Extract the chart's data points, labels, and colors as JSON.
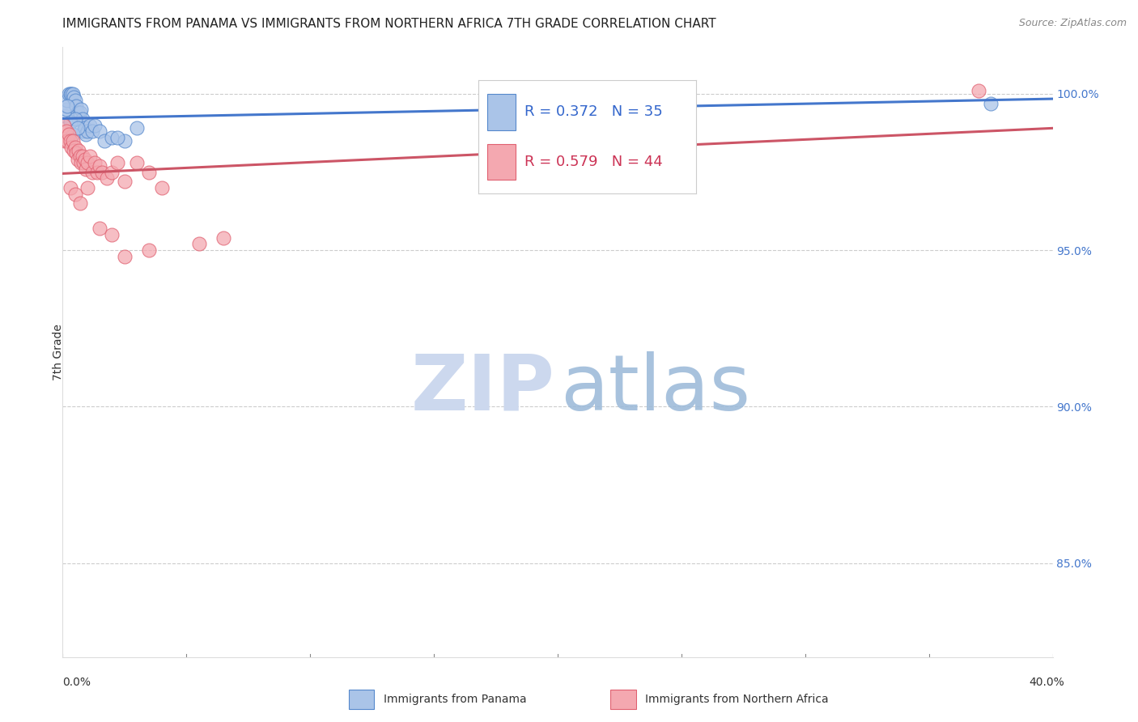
{
  "title": "IMMIGRANTS FROM PANAMA VS IMMIGRANTS FROM NORTHERN AFRICA 7TH GRADE CORRELATION CHART",
  "source": "Source: ZipAtlas.com",
  "ylabel": "7th Grade",
  "right_yticks": [
    85.0,
    90.0,
    95.0,
    100.0
  ],
  "right_ytick_labels": [
    "85.0%",
    "90.0%",
    "95.0%",
    "100.0%"
  ],
  "blue_color": "#aac4e8",
  "pink_color": "#f4a8b0",
  "blue_edge_color": "#5588cc",
  "pink_edge_color": "#e06070",
  "blue_line_color": "#4477cc",
  "pink_line_color": "#cc5566",
  "legend_r_blue": "R = 0.372",
  "legend_n_blue": "N = 35",
  "legend_r_pink": "R = 0.579",
  "legend_n_pink": "N = 44",
  "x_min": 0.0,
  "x_max": 40.0,
  "y_min": 82.0,
  "y_max": 101.5,
  "blue_scatter_x": [
    0.1,
    0.15,
    0.2,
    0.25,
    0.3,
    0.35,
    0.4,
    0.45,
    0.5,
    0.55,
    0.6,
    0.65,
    0.7,
    0.75,
    0.8,
    0.85,
    0.9,
    0.95,
    1.0,
    1.1,
    1.2,
    1.3,
    1.5,
    1.7,
    2.0,
    2.5,
    3.0,
    0.2,
    0.3,
    0.4,
    0.5,
    0.6,
    2.2,
    22.5,
    37.5
  ],
  "blue_scatter_y": [
    99.3,
    99.5,
    99.8,
    100.0,
    100.0,
    100.0,
    100.0,
    99.9,
    99.8,
    99.6,
    99.4,
    99.2,
    99.4,
    99.5,
    99.2,
    98.8,
    98.9,
    98.7,
    98.8,
    99.0,
    98.8,
    99.0,
    98.8,
    98.5,
    98.6,
    98.5,
    98.9,
    99.6,
    99.1,
    98.7,
    99.2,
    98.9,
    98.6,
    100.1,
    99.7
  ],
  "pink_scatter_x": [
    0.05,
    0.1,
    0.15,
    0.2,
    0.25,
    0.3,
    0.35,
    0.4,
    0.45,
    0.5,
    0.55,
    0.6,
    0.65,
    0.7,
    0.75,
    0.8,
    0.85,
    0.9,
    0.95,
    1.0,
    1.1,
    1.2,
    1.3,
    1.4,
    1.5,
    1.6,
    1.8,
    2.0,
    2.2,
    2.5,
    3.0,
    3.5,
    0.3,
    0.5,
    0.7,
    1.0,
    1.5,
    2.0,
    2.5,
    3.5,
    5.5,
    37.0,
    6.5,
    4.0
  ],
  "pink_scatter_y": [
    99.0,
    98.5,
    98.8,
    98.5,
    98.7,
    98.5,
    98.3,
    98.5,
    98.2,
    98.3,
    98.1,
    97.9,
    98.2,
    98.0,
    97.8,
    98.0,
    97.8,
    97.9,
    97.6,
    97.8,
    98.0,
    97.5,
    97.8,
    97.5,
    97.7,
    97.5,
    97.3,
    97.5,
    97.8,
    97.2,
    97.8,
    97.5,
    97.0,
    96.8,
    96.5,
    97.0,
    95.7,
    95.5,
    94.8,
    95.0,
    95.2,
    100.1,
    95.4,
    97.0
  ]
}
